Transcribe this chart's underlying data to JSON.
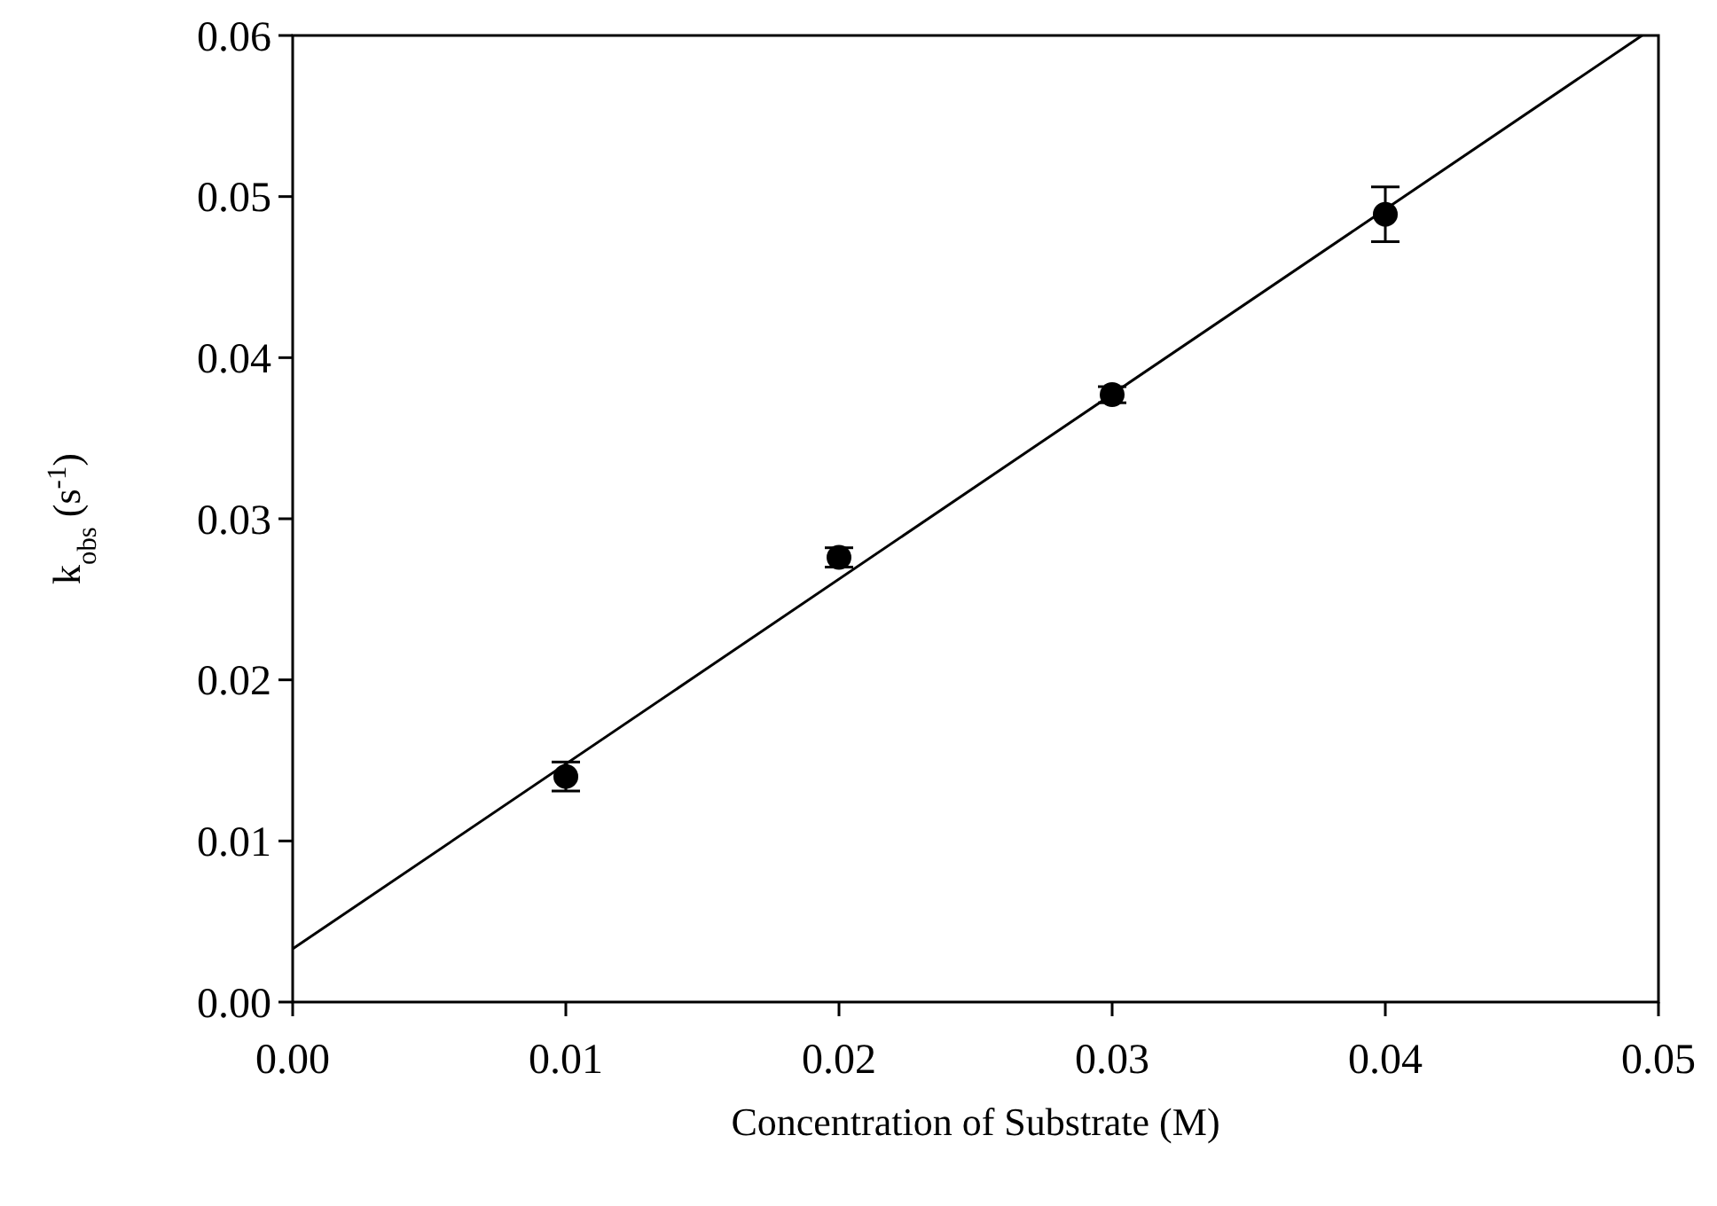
{
  "chart_data": {
    "type": "scatter",
    "xlabel": "Concentration of Substrate (M)",
    "ylabel": "k$_{obs}$ (s$^{-1}$)",
    "xlim": [
      0,
      0.05
    ],
    "ylim": [
      0,
      0.06
    ],
    "xticks": [
      {
        "value": 0,
        "label": "0.00"
      },
      {
        "value": 0.01,
        "label": "0.01"
      },
      {
        "value": 0.02,
        "label": "0.02"
      },
      {
        "value": 0.03,
        "label": "0.03"
      },
      {
        "value": 0.04,
        "label": "0.04"
      },
      {
        "value": 0.05,
        "label": "0.05"
      }
    ],
    "yticks": [
      {
        "value": 0,
        "label": "0.00"
      },
      {
        "value": 0.01,
        "label": "0.01"
      },
      {
        "value": 0.02,
        "label": "0.02"
      },
      {
        "value": 0.03,
        "label": "0.03"
      },
      {
        "value": 0.04,
        "label": "0.04"
      },
      {
        "value": 0.05,
        "label": "0.05"
      },
      {
        "value": 0.06,
        "label": "0.06"
      }
    ],
    "grid": false,
    "series": [
      {
        "color": "#000000",
        "marker": "circle",
        "x": [
          0.01,
          0.02,
          0.03,
          0.04
        ],
        "values": [
          0.014,
          0.0276,
          0.0377,
          0.0489
        ],
        "errors": [
          0.0009,
          0.0006,
          0.0005,
          0.0017
        ]
      },
      {
        "type": "line",
        "color": "#000000",
        "x": [
          0,
          0.0494
        ],
        "values": [
          0.0033,
          0.06
        ],
        "line_style": "solid"
      }
    ]
  }
}
